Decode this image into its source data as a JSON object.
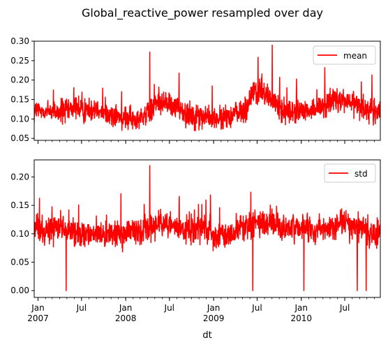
{
  "figure": {
    "title": "Global_reactive_power resampled over day",
    "xlabel": "dt"
  },
  "colors": {
    "series": "#ff0000",
    "axis": "#000000",
    "background": "#ffffff"
  },
  "chart_data": [
    {
      "type": "line",
      "legend": {
        "label": "mean",
        "placement": "top-right"
      },
      "ylim": [
        0.045,
        0.3
      ],
      "yticks": [
        "0.05",
        "0.10",
        "0.15",
        "0.20",
        "0.25",
        "0.30"
      ],
      "series": [
        {
          "name": "mean",
          "x": [
            "2006-12-16",
            "2007-01-15",
            "2007-02-15",
            "2007-03-15",
            "2007-04-15",
            "2007-05-15",
            "2007-06-15",
            "2007-07-15",
            "2007-08-15",
            "2007-09-15",
            "2007-10-15",
            "2007-11-15",
            "2007-12-15",
            "2008-01-15",
            "2008-02-15",
            "2008-03-15",
            "2008-04-15",
            "2008-05-15",
            "2008-06-15",
            "2008-07-15",
            "2008-08-15",
            "2008-09-15",
            "2008-10-15",
            "2008-11-15",
            "2008-12-15",
            "2009-01-15",
            "2009-02-15",
            "2009-03-15",
            "2009-04-15",
            "2009-05-15",
            "2009-06-15",
            "2009-07-15",
            "2009-08-15",
            "2009-09-15",
            "2009-10-15",
            "2009-11-15",
            "2009-12-15",
            "2010-01-15",
            "2010-02-15",
            "2010-03-15",
            "2010-04-15",
            "2010-05-15",
            "2010-06-15",
            "2010-07-15",
            "2010-08-15",
            "2010-09-15",
            "2010-10-15",
            "2010-11-26"
          ],
          "values": [
            0.12,
            0.12,
            0.12,
            0.12,
            0.12,
            0.12,
            0.13,
            0.12,
            0.13,
            0.13,
            0.11,
            0.11,
            0.1,
            0.1,
            0.1,
            0.11,
            0.12,
            0.15,
            0.14,
            0.13,
            0.13,
            0.11,
            0.11,
            0.11,
            0.1,
            0.1,
            0.1,
            0.11,
            0.12,
            0.12,
            0.17,
            0.17,
            0.16,
            0.14,
            0.12,
            0.12,
            0.12,
            0.12,
            0.12,
            0.13,
            0.14,
            0.15,
            0.15,
            0.14,
            0.14,
            0.13,
            0.12,
            0.12
          ]
        }
      ]
    },
    {
      "type": "line",
      "legend": {
        "label": "std",
        "placement": "top-right"
      },
      "ylim": [
        -0.012,
        0.23
      ],
      "yticks": [
        "0.00",
        "0.05",
        "0.10",
        "0.15",
        "0.20"
      ],
      "series": [
        {
          "name": "std",
          "x": [
            "2006-12-16",
            "2007-01-15",
            "2007-02-15",
            "2007-03-15",
            "2007-04-15",
            "2007-05-15",
            "2007-06-15",
            "2007-07-15",
            "2007-08-15",
            "2007-09-15",
            "2007-10-15",
            "2007-11-15",
            "2007-12-15",
            "2008-01-15",
            "2008-02-15",
            "2008-03-15",
            "2008-04-15",
            "2008-05-15",
            "2008-06-15",
            "2008-07-15",
            "2008-08-15",
            "2008-09-15",
            "2008-10-15",
            "2008-11-15",
            "2008-12-15",
            "2009-01-15",
            "2009-02-15",
            "2009-03-15",
            "2009-04-15",
            "2009-05-15",
            "2009-06-15",
            "2009-07-15",
            "2009-08-15",
            "2009-09-15",
            "2009-10-15",
            "2009-11-15",
            "2009-12-15",
            "2010-01-15",
            "2010-02-15",
            "2010-03-15",
            "2010-04-15",
            "2010-05-15",
            "2010-06-15",
            "2010-07-15",
            "2010-08-15",
            "2010-09-15",
            "2010-10-15",
            "2010-11-26"
          ],
          "values": [
            0.11,
            0.11,
            0.11,
            0.11,
            0.11,
            0.1,
            0.1,
            0.1,
            0.1,
            0.1,
            0.1,
            0.1,
            0.1,
            0.1,
            0.1,
            0.11,
            0.11,
            0.12,
            0.12,
            0.11,
            0.11,
            0.1,
            0.11,
            0.11,
            0.1,
            0.1,
            0.1,
            0.1,
            0.11,
            0.11,
            0.12,
            0.12,
            0.12,
            0.12,
            0.11,
            0.11,
            0.11,
            0.11,
            0.11,
            0.11,
            0.11,
            0.11,
            0.12,
            0.11,
            0.11,
            0.11,
            0.1,
            0.1
          ]
        }
      ]
    }
  ],
  "xaxis": {
    "range": [
      "2006-12-16",
      "2010-11-26"
    ],
    "major_ticks": [
      {
        "date": "2007-01-01",
        "label": "Jan",
        "year": "2007"
      },
      {
        "date": "2007-07-01",
        "label": "Jul",
        "year": ""
      },
      {
        "date": "2008-01-01",
        "label": "Jan",
        "year": "2008"
      },
      {
        "date": "2008-07-01",
        "label": "Jul",
        "year": ""
      },
      {
        "date": "2009-01-01",
        "label": "Jan",
        "year": "2009"
      },
      {
        "date": "2009-07-01",
        "label": "Jul",
        "year": ""
      },
      {
        "date": "2010-01-01",
        "label": "Jan",
        "year": "2010"
      },
      {
        "date": "2010-07-01",
        "label": "Jul",
        "year": ""
      }
    ]
  }
}
